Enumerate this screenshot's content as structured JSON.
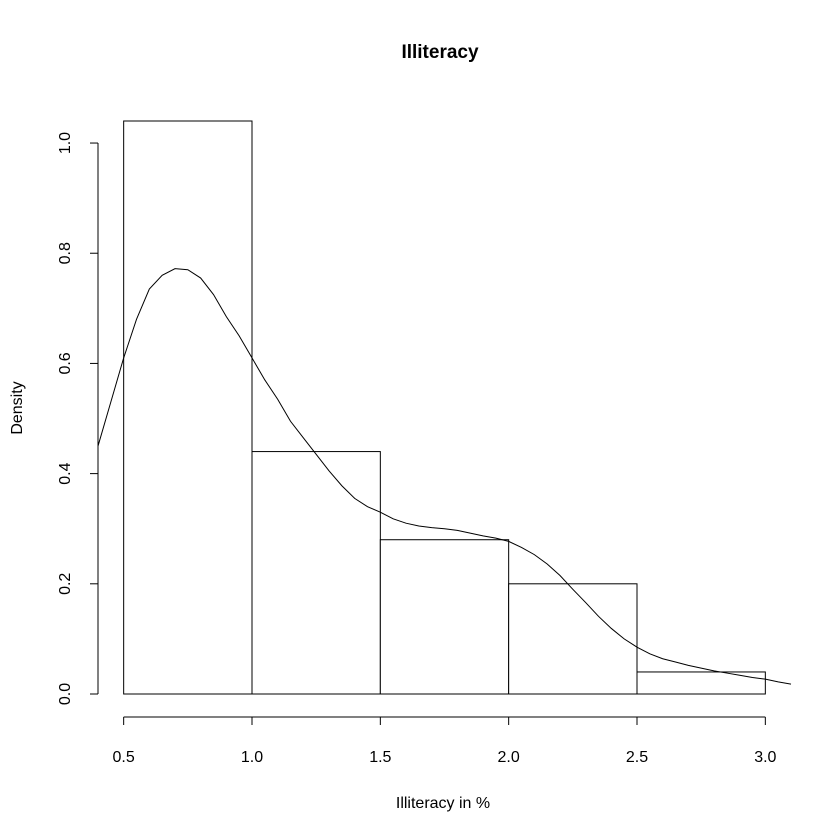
{
  "chart_data": {
    "type": "bar",
    "title": "Illiteracy",
    "xlabel": "Illiteracy in %",
    "ylabel": "Density",
    "xlim": [
      0.4,
      3.1
    ],
    "ylim": [
      0.0,
      1.04
    ],
    "x_ticks": [
      "0.5",
      "1.0",
      "1.5",
      "2.0",
      "2.5",
      "3.0"
    ],
    "y_ticks": [
      "0.0",
      "0.2",
      "0.4",
      "0.6",
      "0.8",
      "1.0"
    ],
    "grid": false,
    "bins": [
      {
        "from": 0.5,
        "to": 1.0,
        "density": 1.04
      },
      {
        "from": 1.0,
        "to": 1.5,
        "density": 0.44
      },
      {
        "from": 1.5,
        "to": 2.0,
        "density": 0.28
      },
      {
        "from": 2.0,
        "to": 2.5,
        "density": 0.2
      },
      {
        "from": 2.5,
        "to": 3.0,
        "density": 0.04
      }
    ],
    "density_curve": {
      "x": [
        0.4,
        0.45,
        0.5,
        0.55,
        0.6,
        0.65,
        0.7,
        0.75,
        0.8,
        0.85,
        0.9,
        0.95,
        1.0,
        1.05,
        1.1,
        1.15,
        1.2,
        1.25,
        1.3,
        1.35,
        1.4,
        1.45,
        1.5,
        1.55,
        1.6,
        1.65,
        1.7,
        1.75,
        1.8,
        1.85,
        1.9,
        1.95,
        2.0,
        2.05,
        2.1,
        2.15,
        2.2,
        2.25,
        2.3,
        2.35,
        2.4,
        2.45,
        2.5,
        2.55,
        2.6,
        2.65,
        2.7,
        2.75,
        2.8,
        2.85,
        2.9,
        2.95,
        3.0,
        3.05,
        3.1
      ],
      "y": [
        0.45,
        0.53,
        0.61,
        0.68,
        0.735,
        0.76,
        0.772,
        0.77,
        0.755,
        0.725,
        0.685,
        0.65,
        0.61,
        0.57,
        0.535,
        0.495,
        0.465,
        0.435,
        0.405,
        0.378,
        0.355,
        0.34,
        0.33,
        0.318,
        0.31,
        0.305,
        0.302,
        0.3,
        0.297,
        0.292,
        0.287,
        0.283,
        0.277,
        0.266,
        0.253,
        0.236,
        0.215,
        0.19,
        0.166,
        0.141,
        0.119,
        0.1,
        0.085,
        0.073,
        0.064,
        0.058,
        0.052,
        0.047,
        0.042,
        0.038,
        0.034,
        0.03,
        0.027,
        0.022,
        0.018
      ]
    }
  }
}
